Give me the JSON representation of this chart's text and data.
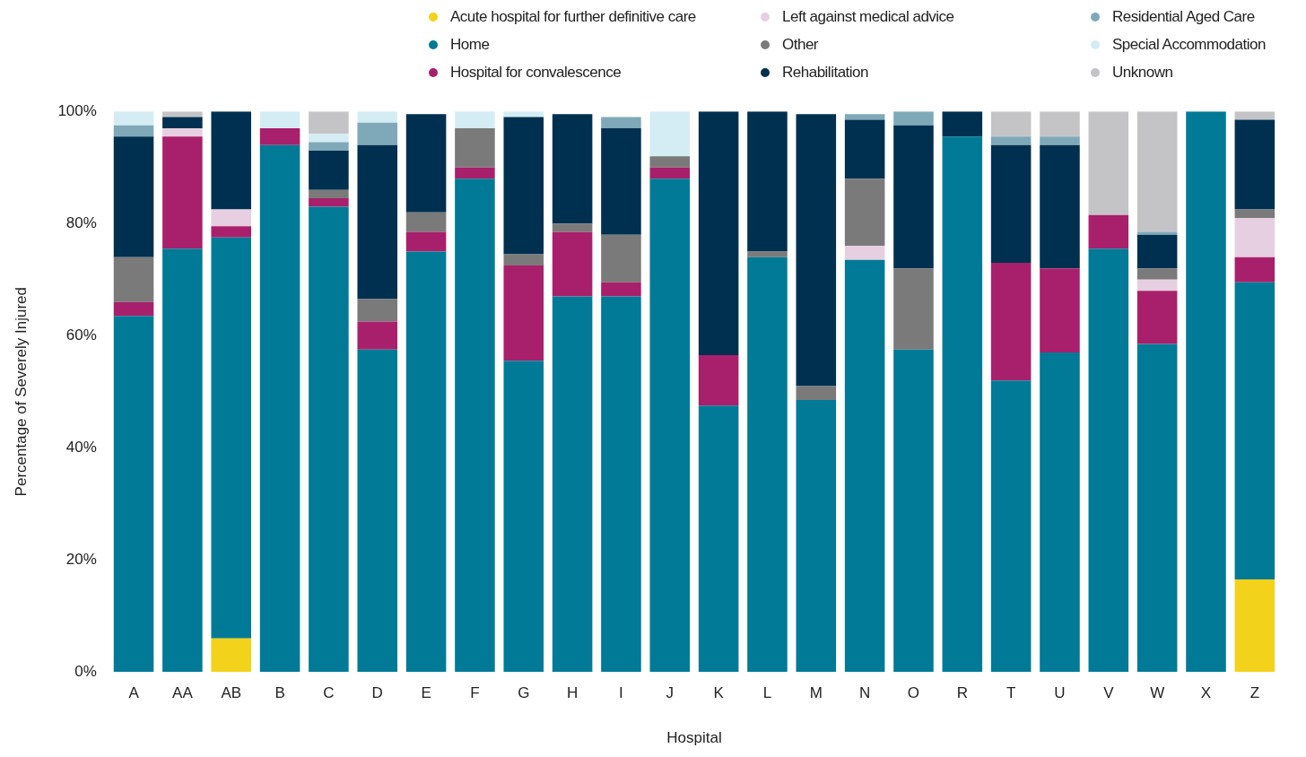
{
  "chart_data": {
    "type": "bar",
    "stacked": true,
    "xlabel": "Hospital",
    "ylabel": "Percentage of Severely Injured",
    "legend": "top",
    "grid": false,
    "categories": [
      "A",
      "AA",
      "AB",
      "B",
      "C",
      "D",
      "E",
      "F",
      "G",
      "H",
      "I",
      "J",
      "K",
      "L",
      "M",
      "N",
      "O",
      "R",
      "T",
      "U",
      "V",
      "W",
      "X",
      "Z"
    ],
    "ylim": [
      0,
      100
    ],
    "yticks": [
      {
        "value": 0,
        "label": "0%"
      },
      {
        "value": 20,
        "label": "20%"
      },
      {
        "value": 40,
        "label": "40%"
      },
      {
        "value": 60,
        "label": "60%"
      },
      {
        "value": 80,
        "label": "80%"
      },
      {
        "value": 100,
        "label": "100%"
      }
    ],
    "series": [
      {
        "name": "Acute hospital for further definitive care",
        "color": "#f2d21b",
        "values": [
          0,
          0,
          6,
          0,
          0,
          0,
          0,
          0,
          0,
          0,
          0,
          0,
          0,
          0,
          0,
          0,
          0,
          0,
          0,
          0,
          0,
          0,
          0,
          16.5
        ]
      },
      {
        "name": "Home",
        "color": "#007a96",
        "values": [
          63.5,
          75.5,
          71.5,
          94,
          83,
          57.5,
          75,
          88,
          55.5,
          67,
          67,
          88,
          47.5,
          74,
          48.5,
          73.5,
          57.5,
          95.5,
          52,
          57,
          75.5,
          58.5,
          100,
          53
        ]
      },
      {
        "name": "Hospital for convalescence",
        "color": "#a8206b",
        "values": [
          2.5,
          20,
          2,
          3,
          1.5,
          5,
          3.5,
          2,
          17,
          11.5,
          2.5,
          2,
          9,
          0,
          0,
          0,
          0,
          0,
          21,
          15,
          6,
          9.5,
          0,
          4.5
        ]
      },
      {
        "name": "Left against medical advice",
        "color": "#e6cfe0",
        "values": [
          0,
          1.5,
          3,
          0,
          0,
          0,
          0,
          0,
          0,
          0,
          0,
          0,
          0,
          0,
          0,
          2.5,
          0,
          0,
          0,
          0,
          0,
          2,
          0,
          7
        ]
      },
      {
        "name": "Other",
        "color": "#7a7a7a",
        "values": [
          8,
          0,
          0,
          0,
          1.5,
          4,
          3.5,
          7,
          2,
          1.5,
          8.5,
          2,
          0,
          1,
          2.5,
          12,
          14.5,
          0,
          0,
          0,
          0,
          2,
          0,
          1.5
        ]
      },
      {
        "name": "Rehabilitation",
        "color": "#003050",
        "values": [
          21.5,
          2,
          17.5,
          0,
          7,
          27.5,
          17.5,
          0,
          24.5,
          19.5,
          19,
          0,
          43.5,
          25,
          48.5,
          10.5,
          25.5,
          4.5,
          21,
          22,
          0,
          6,
          0,
          16
        ]
      },
      {
        "name": "Residential Aged Care",
        "color": "#7fa9b8",
        "values": [
          2,
          0,
          0,
          0,
          1.5,
          4,
          0,
          0,
          0,
          0,
          2,
          0,
          0,
          0,
          0,
          1,
          2.5,
          0,
          1.5,
          1.5,
          0,
          0.5,
          0,
          0
        ]
      },
      {
        "name": "Special Accommodation",
        "color": "#d4edf4",
        "values": [
          2.5,
          0,
          0,
          3,
          1.5,
          2,
          0,
          3,
          1,
          0,
          0,
          8,
          0,
          0,
          0,
          0,
          0,
          0,
          0,
          0,
          0,
          0,
          0,
          0
        ]
      },
      {
        "name": "Unknown",
        "color": "#c4c4c7",
        "values": [
          0,
          1,
          0,
          0,
          4,
          0,
          0,
          0,
          0,
          0,
          0,
          0,
          0,
          0,
          0,
          0,
          0,
          0,
          4.5,
          4.5,
          18.5,
          21.5,
          0,
          1.5
        ]
      }
    ]
  }
}
